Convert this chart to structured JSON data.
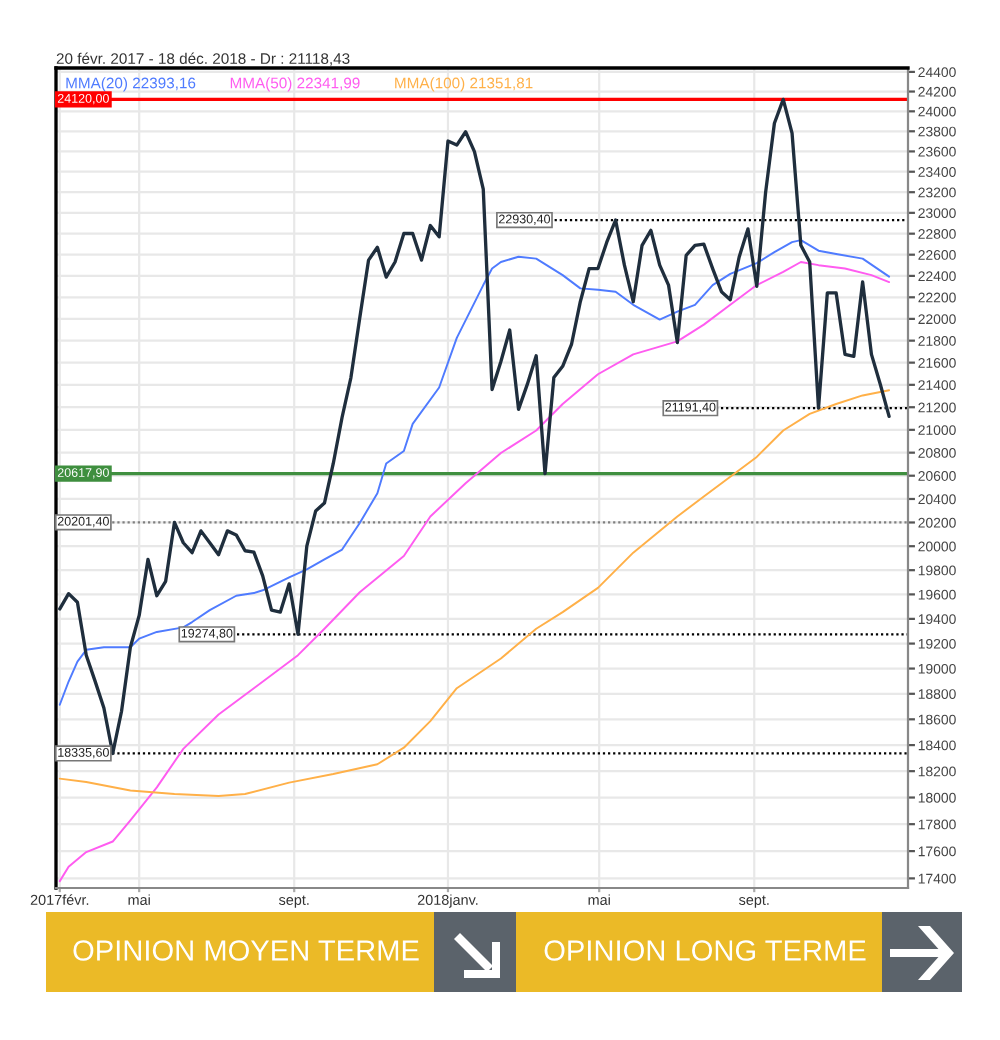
{
  "chart_data": {
    "type": "line",
    "title": "20 févr. 2017 - 18 déc. 2018 - Dr : 21118,43",
    "x": [
      "2017-02-27",
      "2017-03-06",
      "2017-03-13",
      "2017-03-20",
      "2017-03-27",
      "2017-04-03",
      "2017-04-10",
      "2017-04-17",
      "2017-04-24",
      "2017-05-01",
      "2017-05-08",
      "2017-05-15",
      "2017-05-22",
      "2017-05-29",
      "2017-06-05",
      "2017-06-12",
      "2017-06-19",
      "2017-06-26",
      "2017-07-03",
      "2017-07-10",
      "2017-07-17",
      "2017-07-24",
      "2017-07-31",
      "2017-08-07",
      "2017-08-14",
      "2017-08-21",
      "2017-08-28",
      "2017-09-04",
      "2017-09-11",
      "2017-09-18",
      "2017-09-25",
      "2017-10-02",
      "2017-10-09",
      "2017-10-16",
      "2017-10-23",
      "2017-10-30",
      "2017-11-06",
      "2017-11-13",
      "2017-11-20",
      "2017-11-27",
      "2017-12-04",
      "2017-12-11",
      "2017-12-18",
      "2017-12-25",
      "2018-01-01",
      "2018-01-08",
      "2018-01-15",
      "2018-01-22",
      "2018-01-29",
      "2018-02-05",
      "2018-02-12",
      "2018-02-19",
      "2018-02-26",
      "2018-03-05",
      "2018-03-12",
      "2018-03-19",
      "2018-03-26",
      "2018-04-02",
      "2018-04-09",
      "2018-04-16",
      "2018-04-23",
      "2018-04-30",
      "2018-05-07",
      "2018-05-14",
      "2018-05-21",
      "2018-05-28",
      "2018-06-04",
      "2018-06-11",
      "2018-06-18",
      "2018-06-25",
      "2018-07-02",
      "2018-07-09",
      "2018-07-16",
      "2018-07-23",
      "2018-07-30",
      "2018-08-06",
      "2018-08-13",
      "2018-08-20",
      "2018-08-27",
      "2018-09-03",
      "2018-09-10",
      "2018-09-17",
      "2018-09-24",
      "2018-10-01",
      "2018-10-08",
      "2018-10-15",
      "2018-10-22",
      "2018-10-29",
      "2018-11-05",
      "2018-11-12",
      "2018-11-19",
      "2018-11-26",
      "2018-12-03",
      "2018-12-10",
      "2018-12-17"
    ],
    "xlim": [
      "2017-02-24",
      "2019-01-01"
    ],
    "xticks": [
      {
        "value": "2017-02-27",
        "label": "2017févr."
      },
      {
        "value": "2017-05-01",
        "label": "mai"
      },
      {
        "value": "2017-09-01",
        "label": "sept."
      },
      {
        "value": "2018-01-01",
        "label": "2018janv."
      },
      {
        "value": "2018-05-01",
        "label": "mai"
      },
      {
        "value": "2018-09-01",
        "label": "sept."
      }
    ],
    "ylim": [
      17330,
      24440
    ],
    "yticks": [
      17400,
      17600,
      17800,
      18000,
      18200,
      18400,
      18600,
      18800,
      19000,
      19200,
      19400,
      19600,
      19800,
      20000,
      20200,
      20400,
      20600,
      20800,
      21000,
      21200,
      21400,
      21600,
      21800,
      22000,
      22200,
      22400,
      22600,
      22800,
      23000,
      23200,
      23400,
      23600,
      23800,
      24000,
      24200,
      24400
    ],
    "log": true,
    "grid": true,
    "legend": "top left",
    "series": [
      {
        "color": "#4f7bff",
        "name": "MMA(20) 22393,16",
        "x": [
          "2017-02-27",
          "2017-03-06",
          "2017-03-13",
          "2017-03-20",
          "2017-04-03",
          "2017-04-24",
          "2017-05-01",
          "2017-05-15",
          "2017-06-05",
          "2017-06-12",
          "2017-06-26",
          "2017-07-17",
          "2017-07-31",
          "2017-08-07",
          "2017-08-28",
          "2017-09-11",
          "2017-09-25",
          "2017-10-09",
          "2017-10-23",
          "2017-11-06",
          "2017-11-13",
          "2017-11-27",
          "2017-12-04",
          "2017-12-25",
          "2018-01-08",
          "2018-01-29",
          "2018-02-05",
          "2018-02-12",
          "2018-02-26",
          "2018-03-12",
          "2018-04-02",
          "2018-04-16",
          "2018-04-30",
          "2018-05-14",
          "2018-05-28",
          "2018-06-18",
          "2018-07-02",
          "2018-07-16",
          "2018-07-30",
          "2018-08-13",
          "2018-09-03",
          "2018-09-17",
          "2018-10-01",
          "2018-10-08",
          "2018-10-22",
          "2018-11-05",
          "2018-11-26",
          "2018-12-17"
        ],
        "values": [
          18714,
          18897,
          19055,
          19150,
          19171,
          19171,
          19240,
          19294,
          19331,
          19374,
          19471,
          19589,
          19611,
          19634,
          19741,
          19807,
          19890,
          19972,
          20196,
          20449,
          20706,
          20815,
          21053,
          21376,
          21825,
          22314,
          22469,
          22531,
          22581,
          22563,
          22407,
          22283,
          22270,
          22252,
          22130,
          21994,
          22067,
          22130,
          22314,
          22419,
          22520,
          22625,
          22719,
          22738,
          22638,
          22606,
          22563,
          22393.16
        ]
      },
      {
        "color": "#ff5cf0",
        "name": "MMA(50) 22341,99",
        "x": [
          "2017-02-27",
          "2017-03-06",
          "2017-03-20",
          "2017-04-10",
          "2017-04-24",
          "2017-05-15",
          "2017-06-05",
          "2017-07-03",
          "2017-07-31",
          "2017-09-04",
          "2017-09-25",
          "2017-10-23",
          "2017-11-27",
          "2017-12-18",
          "2018-01-15",
          "2018-02-12",
          "2018-03-12",
          "2018-04-02",
          "2018-04-30",
          "2018-05-28",
          "2018-07-02",
          "2018-07-23",
          "2018-08-13",
          "2018-09-03",
          "2018-09-24",
          "2018-10-08",
          "2018-10-22",
          "2018-11-12",
          "2018-12-03",
          "2018-12-17"
        ],
        "values": [
          17380,
          17485,
          17593,
          17671,
          17829,
          18077,
          18371,
          18637,
          18844,
          19107,
          19320,
          19618,
          19918,
          20251,
          20535,
          20797,
          20994,
          21229,
          21495,
          21675,
          21794,
          21947,
          22130,
          22314,
          22437,
          22531,
          22501,
          22469,
          22407,
          22341.99
        ]
      },
      {
        "color": "#ffb048",
        "name": "MMA(100) 21351,81",
        "x": [
          "2017-02-27",
          "2017-03-20",
          "2017-04-24",
          "2017-05-29",
          "2017-07-03",
          "2017-07-24",
          "2017-08-28",
          "2017-10-02",
          "2017-11-06",
          "2017-11-27",
          "2017-12-18",
          "2018-01-08",
          "2018-02-12",
          "2018-03-12",
          "2018-04-02",
          "2018-04-30",
          "2018-05-28",
          "2018-07-02",
          "2018-07-23",
          "2018-08-13",
          "2018-09-03",
          "2018-09-24",
          "2018-10-15",
          "2018-11-05",
          "2018-11-26",
          "2018-12-17"
        ],
        "values": [
          18143,
          18117,
          18053,
          18027,
          18012,
          18027,
          18113,
          18178,
          18253,
          18380,
          18586,
          18844,
          19080,
          19320,
          19455,
          19654,
          19946,
          20251,
          20421,
          20591,
          20763,
          20994,
          21141,
          21229,
          21305,
          21351.81
        ]
      },
      {
        "color": "#1f2e3d",
        "values": [
          19481,
          19606,
          19536,
          19107,
          18900,
          18688,
          18335.6,
          18663,
          19171,
          19428,
          19890,
          19589,
          19708,
          20201.4,
          20029,
          19946,
          20129,
          20029,
          19929,
          20129,
          20095,
          19962,
          19950,
          19753,
          19471,
          19455,
          19687,
          19274.8,
          20001,
          20297,
          20365,
          20706,
          21111,
          21465,
          22007,
          22549,
          22670,
          22389,
          22531,
          22802,
          22802,
          22549,
          22878,
          22770,
          23703,
          23663,
          23795,
          23598,
          23229,
          21358,
          21610,
          21897,
          21181,
          21406,
          21662,
          20617.9,
          21465,
          21567,
          21765,
          22159,
          22469,
          22469,
          22719,
          22930.4,
          22501,
          22159,
          22689,
          22832,
          22501,
          22314,
          21783,
          22594,
          22689,
          22700,
          22469,
          22252,
          22178,
          22576,
          22846,
          22302,
          23196,
          23880,
          24120,
          23782,
          22689,
          22531,
          21191.4,
          22241,
          22241,
          21675,
          21657,
          22344,
          21675,
          21406,
          21118.43
        ]
      },
      {
        "type": "line",
        "color": "#000000",
        "line_style": "dotted",
        "x": [
          "2018-02-10",
          "2019-01-01"
        ],
        "values": [
          22930.4,
          22930.4
        ],
        "value_labels": [
          "22930,40",
          null
        ]
      },
      {
        "type": "line",
        "color": "#000000",
        "line_style": "dotted",
        "x": [
          "2018-06-22",
          "2019-01-01"
        ],
        "values": [
          21191.4,
          21191.4
        ],
        "value_labels": [
          "21191,40",
          null
        ]
      },
      {
        "type": "line",
        "color": "#000000",
        "line_style": "dotted",
        "x": [
          "2017-06-03",
          "2019-01-01"
        ],
        "values": [
          19274.8,
          19274.8
        ],
        "value_labels": [
          "19274,80",
          null
        ]
      }
    ],
    "ref_lines": [
      {
        "axis": "y",
        "value": 24120.0,
        "label": "24120,00",
        "color": "#ff0000",
        "line_style": "solid"
      },
      {
        "axis": "y",
        "value": 20617.9,
        "label": "20617,90",
        "color": "#3f8f3f",
        "line_style": "solid"
      },
      {
        "axis": "y",
        "value": 20201.4,
        "label": "20201,40",
        "color": "#808080",
        "line_style": "dotted"
      },
      {
        "axis": "y",
        "value": 18335.6,
        "label": "18335,60",
        "color": "#000000",
        "line_style": "dotted"
      }
    ],
    "annotations": [
      "OPINION MOYEN TERME",
      "OPINION LONG TERME"
    ]
  }
}
